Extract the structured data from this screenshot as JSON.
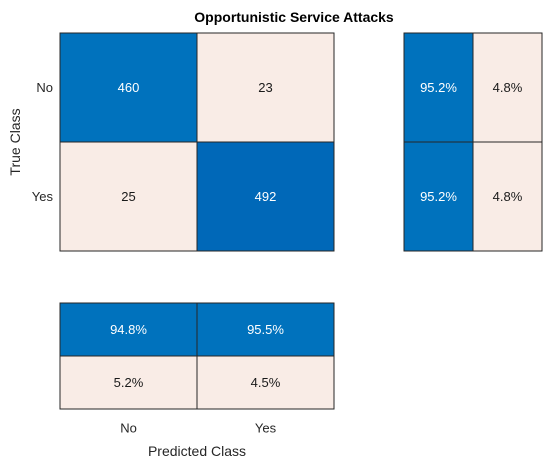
{
  "chart_data": {
    "type": "heatmap",
    "title": "Opportunistic Service Attacks",
    "xlabel": "Predicted Class",
    "ylabel": "True Class",
    "classes": [
      "No",
      "Yes"
    ],
    "matrix": [
      [
        460,
        23
      ],
      [
        25,
        492
      ]
    ],
    "row_summary": [
      [
        "95.2%",
        "4.8%"
      ],
      [
        "95.2%",
        "4.8%"
      ]
    ],
    "column_summary": [
      [
        "94.8%",
        "95.5%"
      ],
      [
        "5.2%",
        "4.5%"
      ]
    ],
    "colors": {
      "high": "#0072bd",
      "low": "#f9ece6",
      "text_on_high": "#ffffff",
      "text_on_low": "#1a1a1a"
    }
  }
}
